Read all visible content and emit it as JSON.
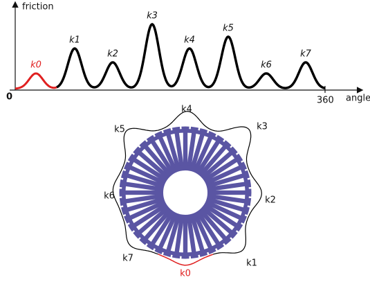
{
  "axis": {
    "y_label": "friction",
    "x_label": "angle",
    "x_start": "0",
    "x_end": "360"
  },
  "graph_peaks": [
    "k0",
    "k1",
    "k2",
    "k3",
    "k4",
    "k5",
    "k6",
    "k7"
  ],
  "polar_peaks": [
    "k0",
    "k1",
    "k2",
    "k3",
    "k4",
    "k5",
    "k6",
    "k7"
  ]
}
